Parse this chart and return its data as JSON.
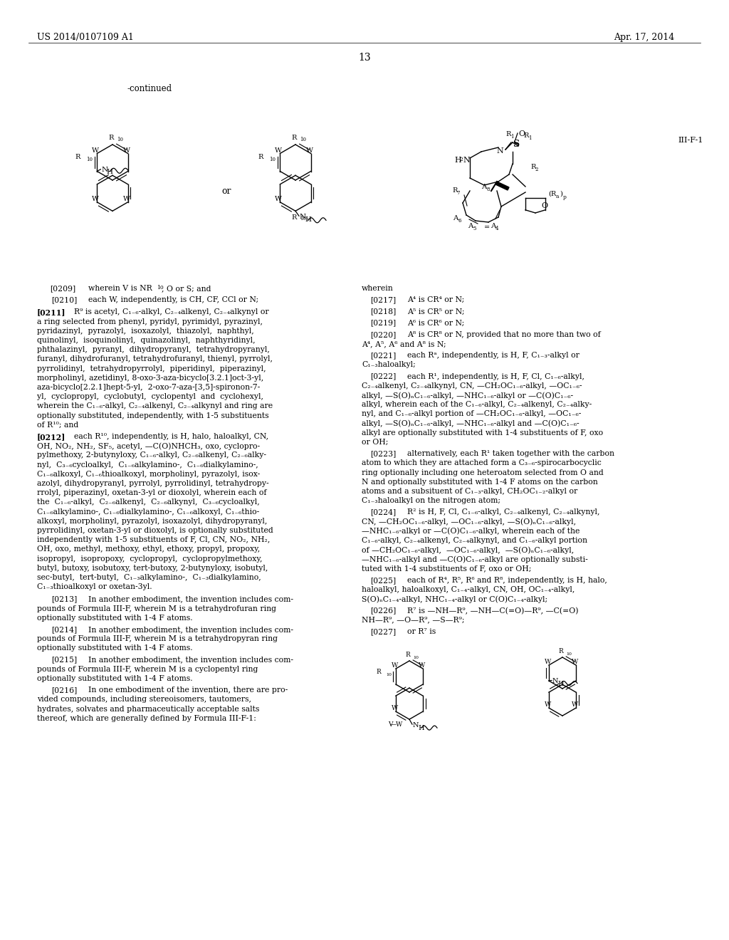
{
  "bg_color": "#ffffff",
  "header_left": "US 2014/0107109 A1",
  "header_right": "Apr. 17, 2014",
  "page_number": "13",
  "continued_label": "-continued",
  "formula_label": "III-F-1"
}
